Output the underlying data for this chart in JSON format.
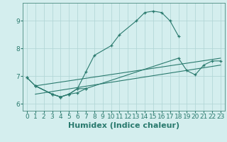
{
  "xlabel": "Humidex (Indice chaleur)",
  "xlim": [
    -0.5,
    23.5
  ],
  "ylim": [
    5.75,
    9.65
  ],
  "bg_color": "#d4eeee",
  "line_color": "#2a7a6e",
  "grid_color": "#aed4d4",
  "series": [
    {
      "x": [
        0,
        1,
        3,
        4,
        5,
        6,
        7
      ],
      "y": [
        6.95,
        6.65,
        6.35,
        6.25,
        6.35,
        6.4,
        6.55
      ]
    },
    {
      "x": [
        0,
        1,
        3,
        4,
        5,
        6,
        7,
        8,
        10,
        11,
        13,
        14,
        15,
        16,
        17,
        18
      ],
      "y": [
        6.95,
        6.65,
        6.35,
        6.25,
        6.35,
        6.55,
        7.15,
        7.75,
        8.1,
        8.5,
        9.0,
        9.3,
        9.35,
        9.3,
        9.0,
        8.45
      ]
    },
    {
      "x": [
        1,
        3,
        4,
        5,
        6,
        7,
        18,
        19,
        20,
        21,
        22,
        23
      ],
      "y": [
        6.65,
        6.35,
        6.25,
        6.35,
        6.55,
        6.55,
        7.65,
        7.2,
        7.05,
        7.4,
        7.55,
        7.55
      ]
    }
  ],
  "xticks": [
    0,
    1,
    2,
    3,
    4,
    5,
    6,
    7,
    8,
    9,
    10,
    11,
    12,
    13,
    14,
    15,
    16,
    17,
    18,
    19,
    20,
    21,
    22,
    23
  ],
  "yticks": [
    6,
    7,
    8,
    9
  ],
  "tick_fontsize": 6.5,
  "label_fontsize": 8
}
